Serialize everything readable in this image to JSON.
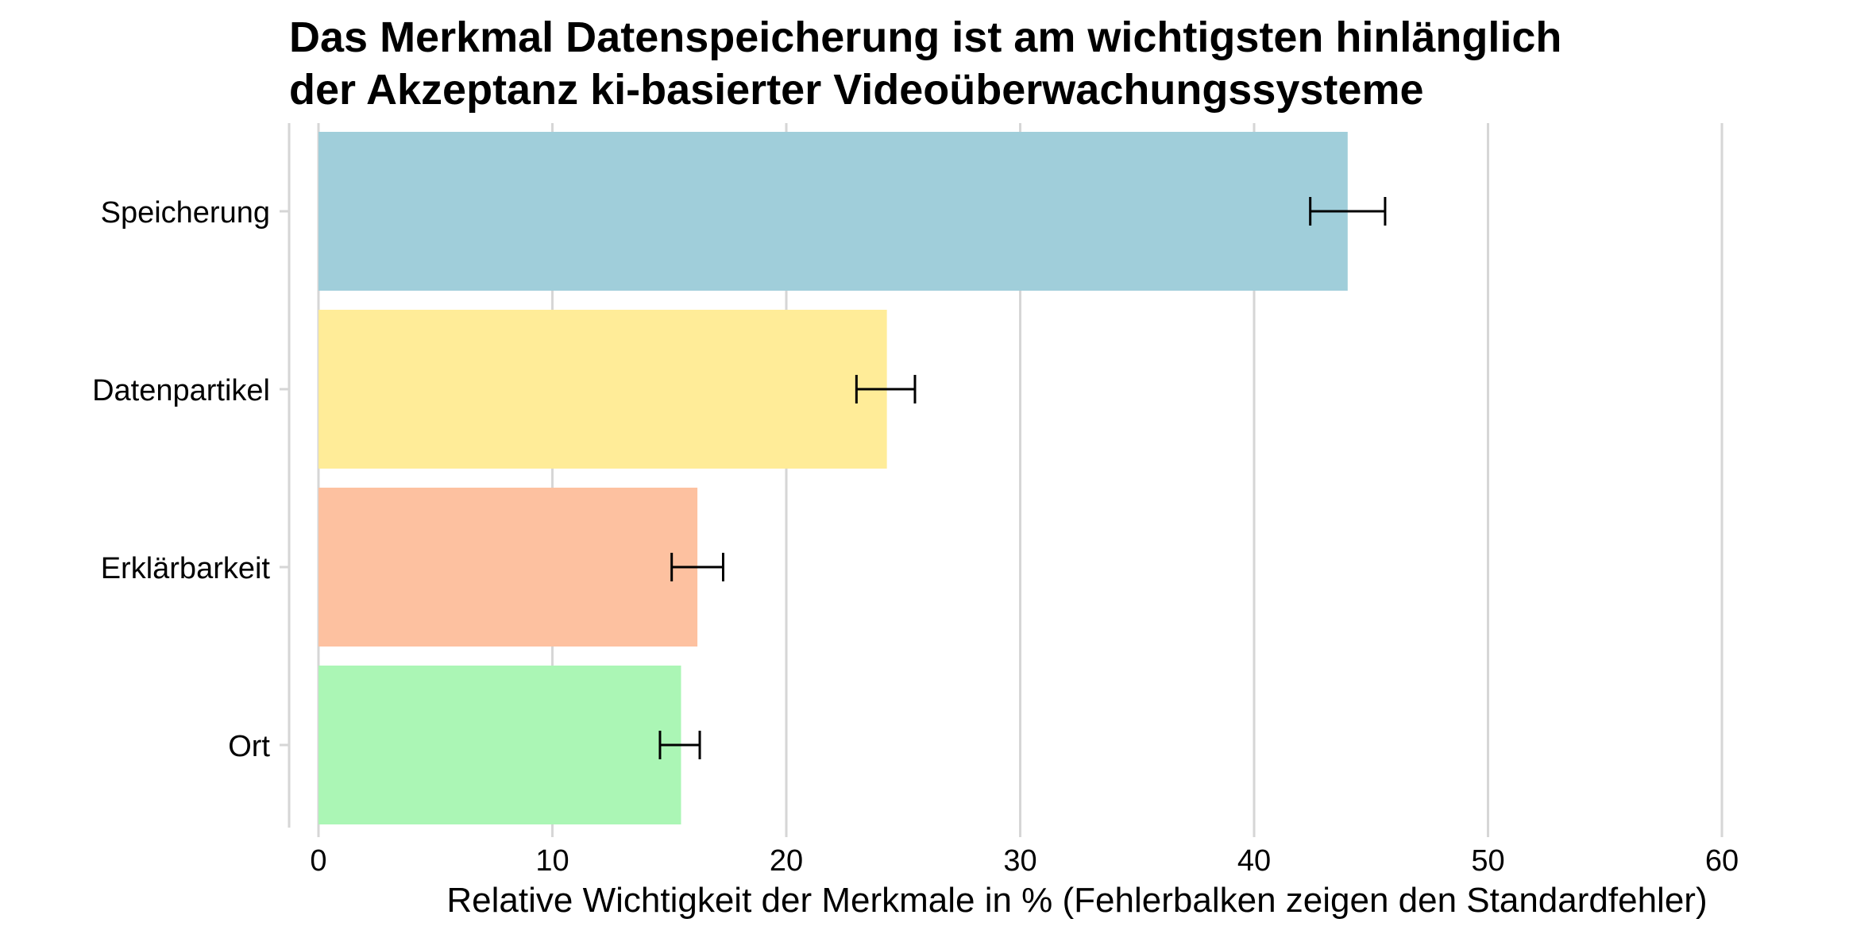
{
  "chart_data": {
    "type": "bar",
    "orientation": "horizontal",
    "title": "Das Merkmal Datenspeicherung ist am wichtigsten hinlänglich der Akzeptanz ki-basierter Videoüberwachungssysteme",
    "title_lines": [
      "Das Merkmal Datenspeicherung ist am wichtigsten hinlänglich",
      "der Akzeptanz ki-basierter Videoüberwachungssysteme"
    ],
    "xlabel": "Relative Wichtigkeit der Merkmale in % (Fehlerbalken zeigen den Standardfehler)",
    "ylabel": "",
    "categories": [
      "Speicherung",
      "Datenpartikel",
      "Erklärbarkeit",
      "Ort"
    ],
    "values": [
      44.0,
      24.3,
      16.2,
      15.5
    ],
    "error_low": [
      42.4,
      23.0,
      15.1,
      14.6
    ],
    "error_high": [
      45.6,
      25.5,
      17.3,
      16.3
    ],
    "colors": [
      "#a0ceda",
      "#ffec98",
      "#fdc1a0",
      "#abf6b5"
    ],
    "xlim": [
      0,
      62
    ],
    "xticks": [
      0,
      10,
      20,
      30,
      40,
      50,
      60
    ],
    "grid": "vertical-major",
    "legend": "none"
  }
}
